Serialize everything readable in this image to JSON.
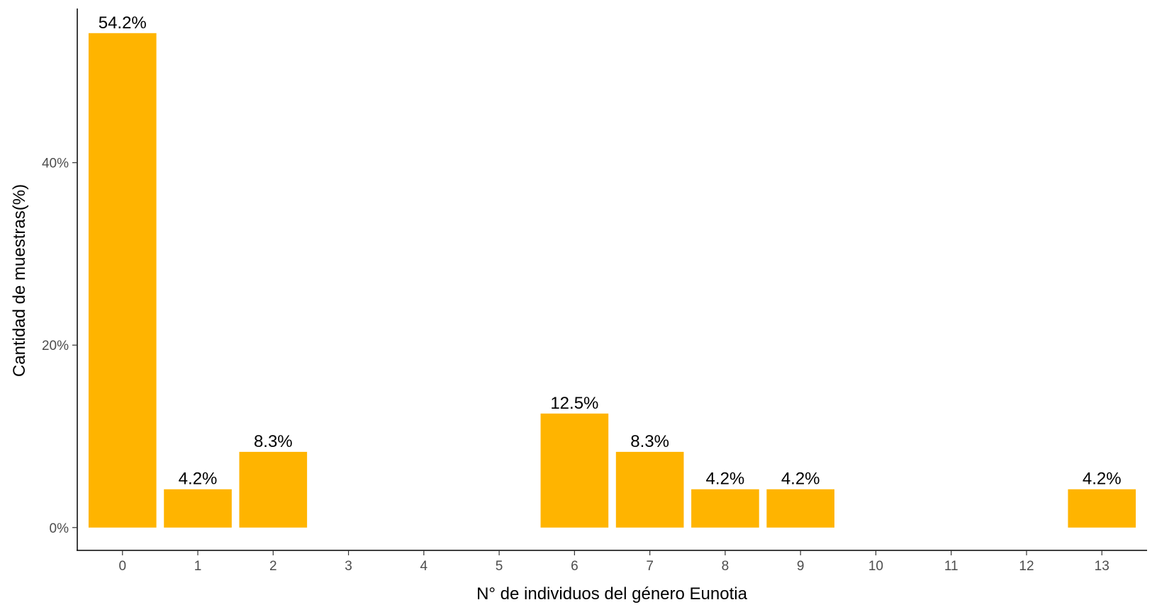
{
  "chart_data": {
    "type": "bar",
    "xlabel": "N° de individuos del género Eunotia",
    "ylabel": "Cantidad de muestras(%)",
    "categories": [
      "0",
      "1",
      "2",
      "3",
      "4",
      "5",
      "6",
      "7",
      "8",
      "9",
      "10",
      "11",
      "12",
      "13"
    ],
    "values": [
      54.2,
      4.2,
      8.3,
      0,
      0,
      0,
      12.5,
      8.3,
      4.2,
      4.2,
      0,
      0,
      0,
      4.2
    ],
    "data_labels": [
      "54.2%",
      "4.2%",
      "8.3%",
      "",
      "",
      "",
      "12.5%",
      "8.3%",
      "4.2%",
      "4.2%",
      "",
      "",
      "",
      "4.2%"
    ],
    "y_ticks": [
      0,
      20,
      40
    ],
    "y_tick_labels": [
      "0%",
      "20%",
      "40%"
    ],
    "ylim": [
      -2.5,
      56.9
    ],
    "bar_color": "#FFB400",
    "grid": false,
    "legend": "none"
  }
}
